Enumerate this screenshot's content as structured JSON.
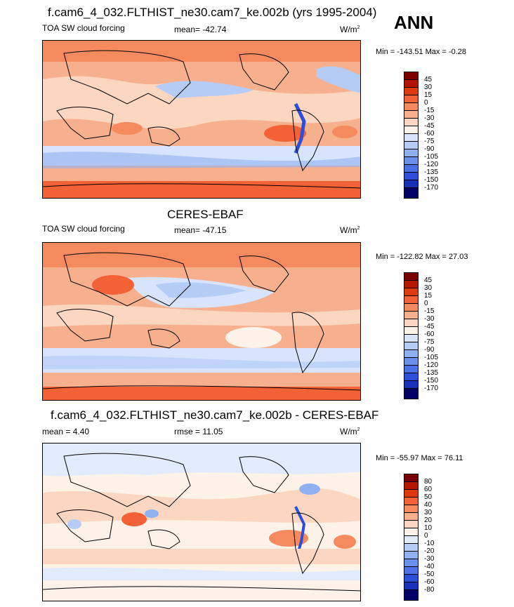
{
  "page": {
    "season_label": "ANN"
  },
  "colors": {
    "abs_palette": [
      "#7a0000",
      "#b31400",
      "#de3a12",
      "#f26236",
      "#f58a5e",
      "#f7b08e",
      "#fbd6c0",
      "#fdf2e8",
      "#d7e4fb",
      "#b5cdf6",
      "#8fb1f2",
      "#6b90ec",
      "#4b6fe5",
      "#2d4ed8",
      "#1930b8",
      "#0a1683",
      "#000066"
    ],
    "diff_palette": [
      "#7a0000",
      "#b31400",
      "#de3a12",
      "#f26236",
      "#f58a5e",
      "#f7b08e",
      "#fbd6c0",
      "#fdf2e8",
      "#e0ebfc",
      "#b5cdf6",
      "#8fb1f2",
      "#6b90ec",
      "#4b6fe5",
      "#2d4ed8",
      "#1930b8",
      "#0a1683",
      "#000066"
    ]
  },
  "chart_data": [
    {
      "type": "heatmap",
      "title": "f.cam6_4_032.FLTHIST_ne30.cam7_ke.002b (yrs 1995-2004)",
      "variable_label": "TOA SW cloud forcing",
      "stat_label": "mean= -42.74",
      "units_label": "W/m",
      "units_exp": "2",
      "min_max_label": "Min = -143.51 Max =  -0.28",
      "min": -143.51,
      "max": -0.28,
      "mean": -42.74,
      "colorbar_levels": [
        "45",
        "30",
        "15",
        "0",
        "-15",
        "-30",
        "-45",
        "-60",
        "-75",
        "-90",
        "-105",
        "-120",
        "-135",
        "-150",
        "-170"
      ]
    },
    {
      "type": "heatmap",
      "title": "CERES-EBAF",
      "variable_label": "TOA SW cloud forcing",
      "stat_label": "mean= -47.15",
      "units_label": "W/m",
      "units_exp": "2",
      "min_max_label": "Min = -122.82 Max =  27.03",
      "min": -122.82,
      "max": 27.03,
      "mean": -47.15,
      "colorbar_levels": [
        "45",
        "30",
        "15",
        "0",
        "-15",
        "-30",
        "-45",
        "-60",
        "-75",
        "-90",
        "-105",
        "-120",
        "-135",
        "-150",
        "-170"
      ]
    },
    {
      "type": "heatmap",
      "title": "f.cam6_4_032.FLTHIST_ne30.cam7_ke.002b - CERES-EBAF",
      "variable_label": "mean =   4.40",
      "stat_label": "rmse =  11.05",
      "units_label": "W/m",
      "units_exp": "2",
      "min_max_label": "Min = -55.97 Max =  76.11",
      "min": -55.97,
      "max": 76.11,
      "mean": 4.4,
      "rmse": 11.05,
      "colorbar_levels": [
        "80",
        "60",
        "50",
        "40",
        "30",
        "20",
        "10",
        "0",
        "-10",
        "-20",
        "-30",
        "-40",
        "-50",
        "-60",
        "-80"
      ]
    }
  ]
}
